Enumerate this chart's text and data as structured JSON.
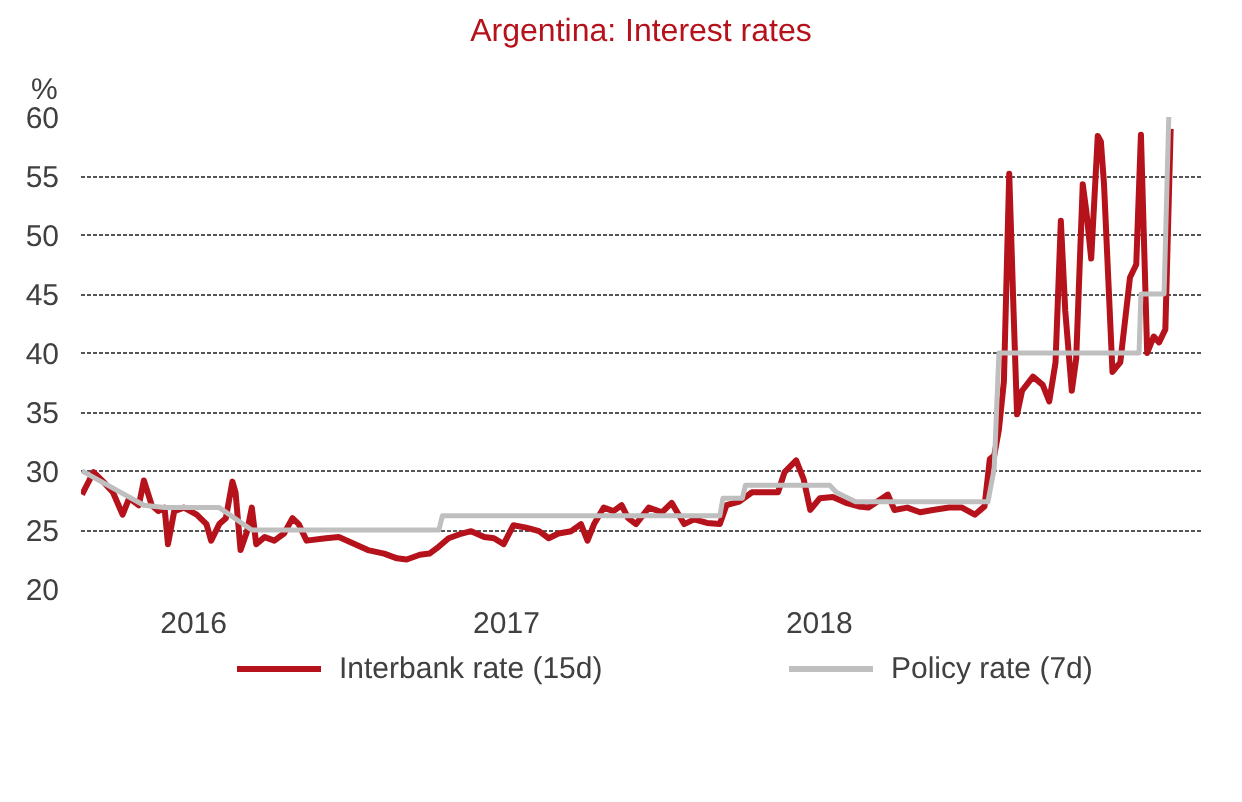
{
  "chart_data": {
    "type": "line",
    "title": "Argentina: Interest rates",
    "ylabel": "%",
    "xlim": [
      2015.64,
      2019.22
    ],
    "xticks": [
      2016,
      2017,
      2018
    ],
    "ylim": [
      20,
      60
    ],
    "yticks": [
      20,
      25,
      30,
      35,
      40,
      45,
      50,
      55,
      60
    ],
    "grid": "y",
    "legend": "bottom",
    "line_style": "solid",
    "series": [
      {
        "name": "Interbank rate (15d)",
        "color": "#b5121b",
        "x": [
          2015.643,
          2015.68,
          2015.711,
          2015.742,
          2015.773,
          2015.794,
          2015.825,
          2015.841,
          2015.866,
          2015.887,
          2015.907,
          2015.918,
          2015.938,
          2015.969,
          2016.01,
          2016.041,
          2016.056,
          2016.082,
          2016.103,
          2016.124,
          2016.134,
          2016.15,
          2016.171,
          2016.186,
          2016.2,
          2016.227,
          2016.258,
          2016.289,
          2016.316,
          2016.336,
          2016.361,
          2016.423,
          2016.464,
          2016.516,
          2016.557,
          2016.609,
          2016.65,
          2016.681,
          2016.723,
          2016.754,
          2016.784,
          2016.815,
          2016.857,
          2016.887,
          2016.929,
          2016.96,
          2016.991,
          2017.022,
          2017.063,
          2017.104,
          2017.135,
          2017.166,
          2017.207,
          2017.238,
          2017.259,
          2017.28,
          2017.311,
          2017.342,
          2017.368,
          2017.389,
          2017.414,
          2017.455,
          2017.497,
          2017.528,
          2017.568,
          2017.6,
          2017.641,
          2017.682,
          2017.703,
          2017.744,
          2017.785,
          2017.827,
          2017.868,
          2017.889,
          2017.926,
          2017.95,
          2017.971,
          2018.002,
          2018.043,
          2018.085,
          2018.126,
          2018.157,
          2018.219,
          2018.24,
          2018.281,
          2018.322,
          2018.363,
          2018.415,
          2018.456,
          2018.497,
          2018.528,
          2018.545,
          2018.559,
          2018.574,
          2018.59,
          2018.607,
          2018.621,
          2018.632,
          2018.648,
          2018.683,
          2018.714,
          2018.735,
          2018.755,
          2018.772,
          2018.786,
          2018.807,
          2018.821,
          2018.842,
          2018.854,
          2018.869,
          2018.89,
          2018.9,
          2018.91,
          2018.937,
          2018.962,
          2018.993,
          2019.013,
          2019.028,
          2019.048,
          2019.069,
          2019.086,
          2019.106,
          2019.123
        ],
        "values": [
          28.0,
          29.9,
          29.1,
          28.2,
          26.3,
          27.7,
          27.1,
          29.2,
          27.1,
          26.6,
          26.9,
          23.8,
          26.6,
          26.9,
          26.3,
          25.5,
          24.1,
          25.5,
          26.0,
          29.1,
          28.2,
          23.3,
          24.9,
          26.9,
          23.8,
          24.4,
          24.1,
          24.7,
          26.0,
          25.5,
          24.1,
          24.3,
          24.4,
          23.8,
          23.3,
          23.0,
          22.6,
          22.5,
          22.9,
          23.0,
          23.6,
          24.3,
          24.7,
          24.9,
          24.4,
          24.3,
          23.8,
          25.4,
          25.2,
          24.9,
          24.3,
          24.7,
          24.9,
          25.5,
          24.1,
          25.5,
          26.9,
          26.6,
          27.1,
          26.0,
          25.5,
          26.9,
          26.5,
          27.3,
          25.5,
          25.9,
          25.6,
          25.5,
          27.1,
          27.4,
          28.2,
          28.2,
          28.2,
          29.9,
          30.9,
          29.3,
          26.7,
          27.7,
          27.8,
          27.3,
          27.0,
          26.9,
          28.0,
          26.7,
          26.9,
          26.5,
          26.7,
          26.9,
          26.9,
          26.3,
          27.0,
          31.0,
          31.3,
          33.5,
          37.6,
          55.2,
          43.4,
          34.8,
          36.8,
          38.0,
          37.3,
          35.9,
          39.2,
          51.2,
          43.6,
          36.8,
          39.5,
          54.3,
          51.9,
          48.0,
          58.4,
          57.9,
          54.3,
          38.4,
          39.2,
          46.4,
          47.5,
          58.5,
          40.0,
          41.4,
          40.9,
          42.0,
          59.0
        ]
      },
      {
        "name": "Policy rate (7d)",
        "color": "#bfbfbf",
        "x": [
          2015.643,
          2015.841,
          2015.907,
          2016.082,
          2016.186,
          2016.784,
          2016.795,
          2017.682,
          2017.692,
          2017.754,
          2017.764,
          2018.033,
          2018.054,
          2018.116,
          2018.539,
          2018.559,
          2018.574,
          2019.022,
          2019.028,
          2019.102,
          2019.117
        ],
        "values": [
          30,
          27.1,
          26.9,
          26.9,
          25,
          25,
          26.2,
          26.2,
          27.7,
          27.7,
          28.8,
          28.8,
          28.2,
          27.4,
          27.4,
          30.2,
          40,
          40,
          45,
          45,
          60
        ]
      }
    ]
  }
}
